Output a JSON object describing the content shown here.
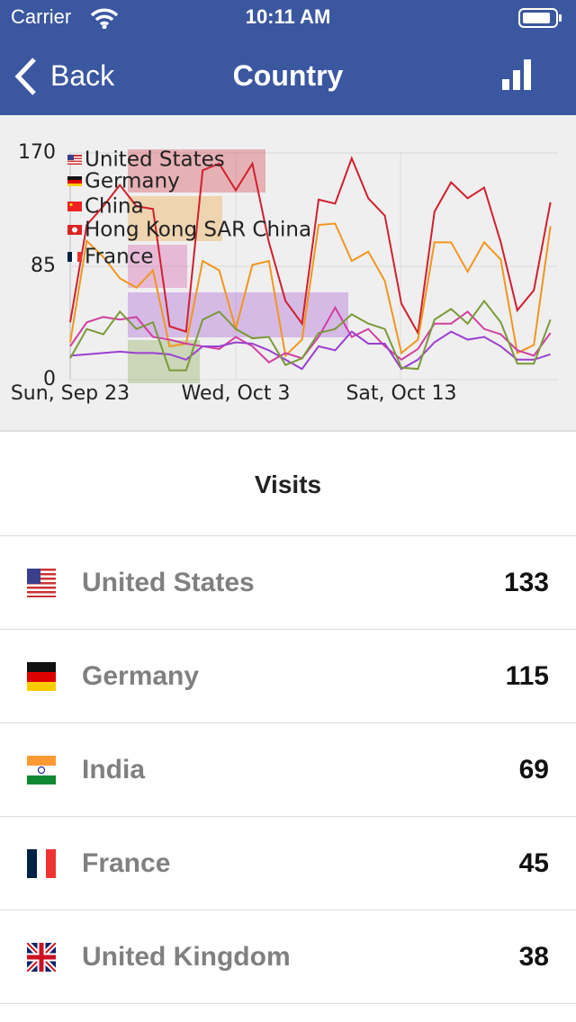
{
  "status_bar": {
    "carrier": "Carrier",
    "time": "10:11 AM"
  },
  "nav": {
    "back": "Back",
    "title": "Country"
  },
  "chart_data": {
    "type": "line",
    "categories": [
      "Sun, Sep 23",
      null,
      null,
      null,
      null,
      null,
      null,
      null,
      null,
      null,
      "Wed, Oct 3",
      null,
      null,
      null,
      null,
      null,
      null,
      null,
      null,
      null,
      "Sat, Oct 13",
      null,
      null,
      null,
      null,
      null,
      null,
      null,
      null,
      null
    ],
    "series": [
      {
        "name": "United States",
        "color": "#d0202e",
        "values": [
          43,
          116,
          130,
          146,
          130,
          128,
          40,
          36,
          157,
          162,
          142,
          162,
          103,
          59,
          42,
          135,
          132,
          166,
          136,
          123,
          57,
          35,
          126,
          148,
          136,
          144,
          103,
          52,
          67,
          133
        ]
      },
      {
        "name": "Germany",
        "color": "#f0961e",
        "values": [
          28,
          104,
          92,
          76,
          69,
          82,
          25,
          27,
          89,
          82,
          38,
          86,
          89,
          18,
          30,
          116,
          117,
          89,
          96,
          74,
          20,
          30,
          103,
          103,
          81,
          103,
          90,
          20,
          26,
          115
        ]
      },
      {
        "name": "China",
        "color": "#d040a0",
        "values": [
          25,
          43,
          47,
          45,
          47,
          32,
          30,
          27,
          25,
          23,
          32,
          25,
          13,
          20,
          16,
          32,
          54,
          32,
          38,
          25,
          15,
          23,
          42,
          42,
          51,
          38,
          34,
          22,
          18,
          35
        ]
      },
      {
        "name": "Hong Kong SAR China",
        "color": "#9b40d0",
        "values": [
          18,
          19,
          20,
          21,
          20,
          20,
          19,
          15,
          25,
          25,
          28,
          27,
          22,
          15,
          8,
          25,
          22,
          36,
          27,
          27,
          8,
          15,
          28,
          36,
          30,
          32,
          25,
          15,
          15,
          19
        ]
      },
      {
        "name": "France",
        "color": "#7a9a3a",
        "values": [
          16,
          38,
          34,
          51,
          38,
          43,
          7,
          7,
          45,
          51,
          38,
          31,
          32,
          11,
          16,
          35,
          38,
          49,
          42,
          38,
          9,
          8,
          45,
          53,
          42,
          59,
          43,
          12,
          12,
          45
        ]
      }
    ],
    "ylim": [
      0,
      170
    ],
    "yticks": [
      0,
      85,
      170
    ],
    "grid": true
  },
  "table": {
    "header": "Visits",
    "rows": [
      {
        "name": "United States",
        "value": 133
      },
      {
        "name": "Germany",
        "value": 115
      },
      {
        "name": "India",
        "value": 69
      },
      {
        "name": "France",
        "value": 45
      },
      {
        "name": "United Kingdom",
        "value": 38
      }
    ]
  }
}
